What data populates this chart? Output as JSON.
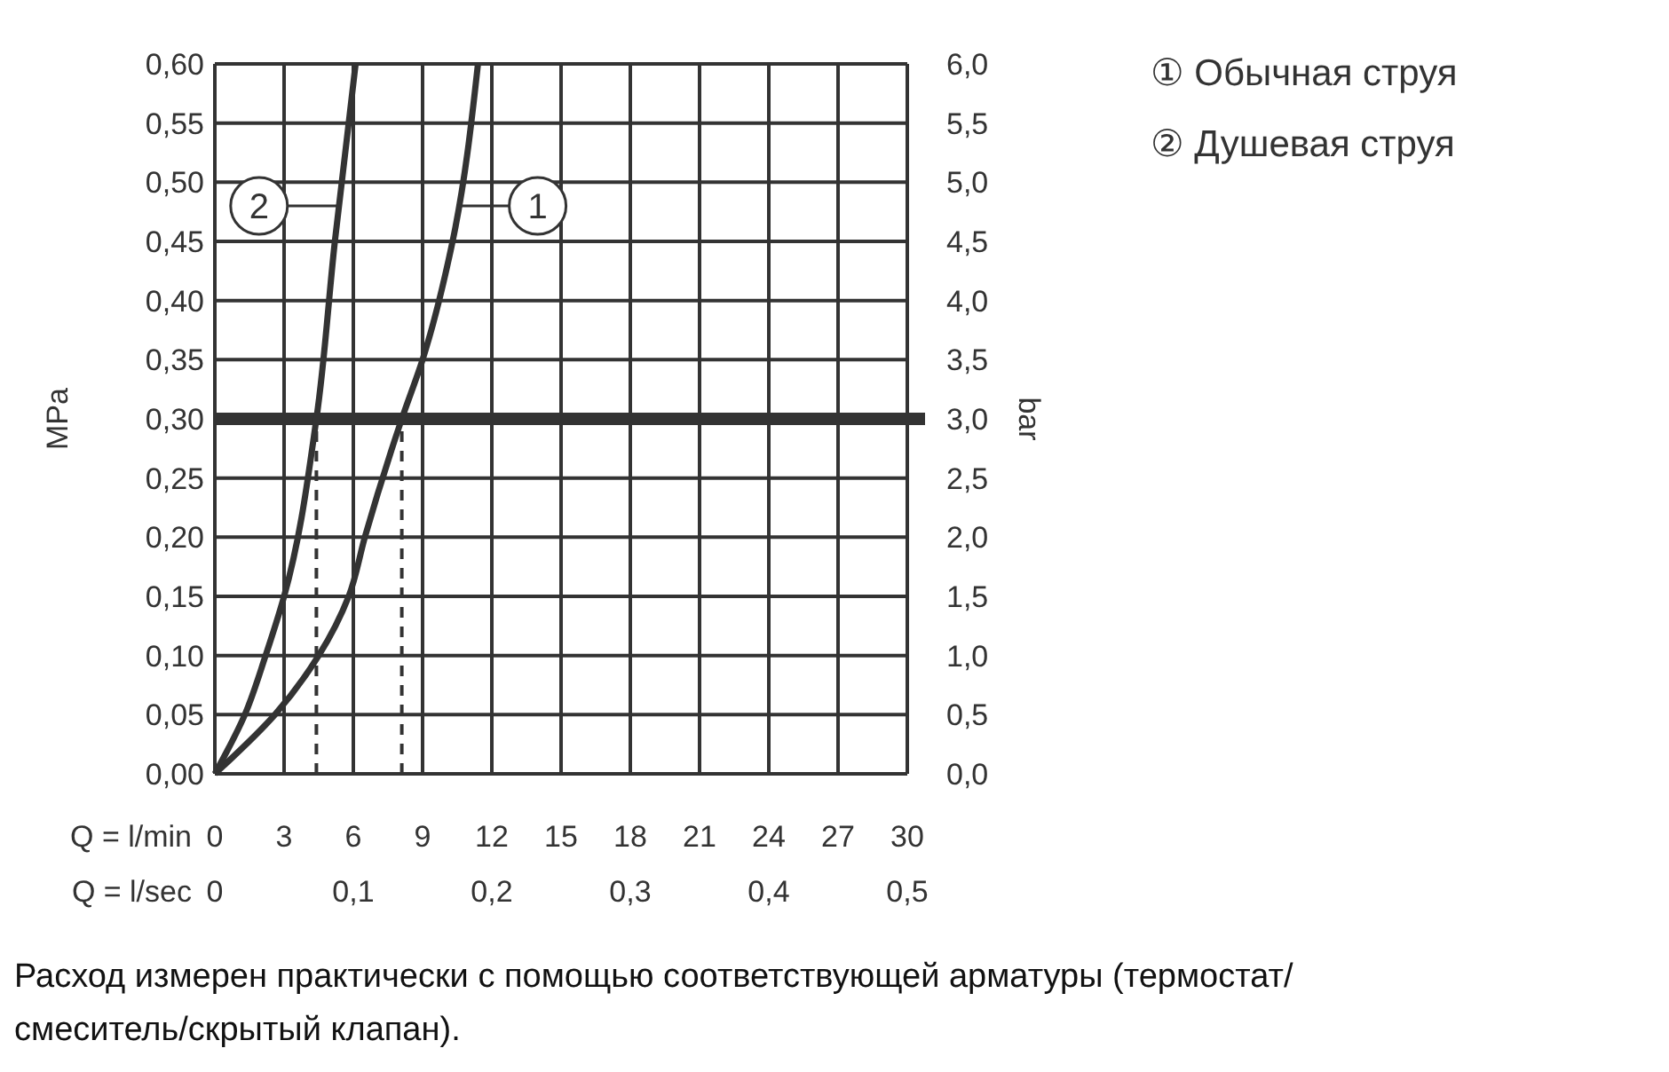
{
  "chart_data": {
    "type": "line",
    "ylabel": "MPa",
    "y2label": "bar",
    "xlabel": "Q = l/min",
    "x2label": "Q = l/sec",
    "xlim": [
      0,
      30
    ],
    "xticks": [
      0,
      3,
      6,
      9,
      12,
      15,
      18,
      21,
      24,
      27,
      30
    ],
    "x2lim": [
      0,
      0.5
    ],
    "x2ticks": [
      0,
      {
        "value": 0.1,
        "label": "0,1"
      },
      {
        "value": 0.2,
        "label": "0,2"
      },
      {
        "value": 0.3,
        "label": "0,3"
      },
      {
        "value": 0.4,
        "label": "0,4"
      },
      {
        "value": 0.5,
        "label": "0,5"
      }
    ],
    "ylim": [
      0,
      0.6
    ],
    "yticks": [
      {
        "value": 0,
        "label": "0,00"
      },
      {
        "value": 0.05,
        "label": "0,05"
      },
      {
        "value": 0.1,
        "label": "0,10"
      },
      {
        "value": 0.15,
        "label": "0,15"
      },
      {
        "value": 0.2,
        "label": "0,20"
      },
      {
        "value": 0.25,
        "label": "0,25"
      },
      {
        "value": 0.3,
        "label": "0,30"
      },
      {
        "value": 0.35,
        "label": "0,35"
      },
      {
        "value": 0.4,
        "label": "0,40"
      },
      {
        "value": 0.45,
        "label": "0,45"
      },
      {
        "value": 0.5,
        "label": "0,50"
      },
      {
        "value": 0.55,
        "label": "0,55"
      },
      {
        "value": 0.6,
        "label": "0,60"
      }
    ],
    "y2lim": [
      0,
      6
    ],
    "y2ticks": [
      {
        "value": 0,
        "label": "0,0"
      },
      {
        "value": 0.5,
        "label": "0,5"
      },
      {
        "value": 1,
        "label": "1,0"
      },
      {
        "value": 1.5,
        "label": "1,5"
      },
      {
        "value": 2,
        "label": "2,0"
      },
      {
        "value": 2.5,
        "label": "2,5"
      },
      {
        "value": 3,
        "label": "3,0"
      },
      {
        "value": 3.5,
        "label": "3,5"
      },
      {
        "value": 4,
        "label": "4,0"
      },
      {
        "value": 4.5,
        "label": "4,5"
      },
      {
        "value": 5,
        "label": "5,0"
      },
      {
        "value": 5.5,
        "label": "5,5"
      },
      {
        "value": 6,
        "label": "6,0"
      }
    ],
    "grid": true,
    "legend": "top right",
    "line_style": "solid",
    "series": [
      {
        "name": "① Обычная струя",
        "color": "#333333",
        "x": [
          0,
          2.6,
          4.5,
          5.8,
          6.5,
          8.1,
          9.0,
          10.3,
          11.4
        ],
        "values": [
          0,
          0.05,
          0.1,
          0.15,
          0.2,
          0.3,
          0.35,
          0.45,
          0.6
        ]
      },
      {
        "name": "② Душевая струя",
        "color": "#333333",
        "x": [
          0,
          1.3,
          2.2,
          3,
          4.4,
          5.2,
          6.1
        ],
        "values": [
          0,
          0.05,
          0.1,
          0.15,
          0.3,
          0.45,
          0.6
        ]
      }
    ],
    "ref_lines": [
      {
        "axis": "y",
        "value": 0.3,
        "color": "#333333",
        "line_style": "solid"
      },
      {
        "axis": "x",
        "value": 4.4,
        "color": "#333333",
        "line_style": "dashed"
      },
      {
        "axis": "x",
        "value": 8.1,
        "color": "#333333",
        "line_style": "dashed"
      }
    ],
    "annotations": [
      {
        "text": "1",
        "x": 10.6,
        "y": 0.48
      },
      {
        "text": "2",
        "x": 5.3,
        "y": 0.48
      },
      "Расход измерен практически с помощью соответствующей арматуры (термостат/смеситель/скрытый клапан)."
    ]
  }
}
